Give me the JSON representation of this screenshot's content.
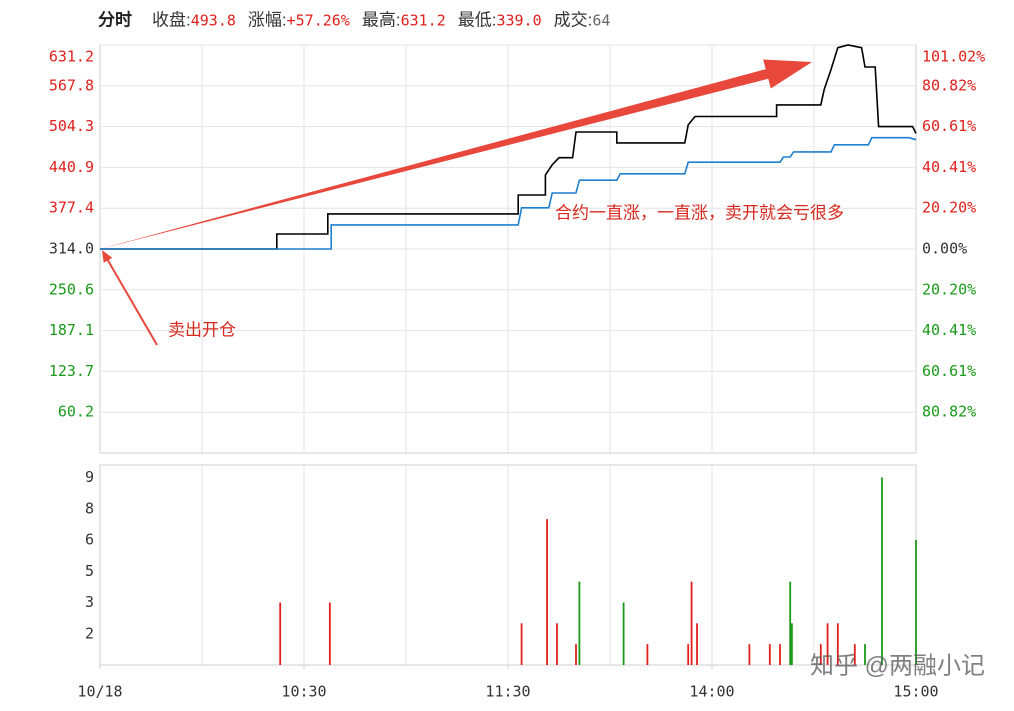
{
  "chart_data": [
    {
      "type": "line",
      "title": "分时",
      "stats": [
        {
          "label": "收盘:",
          "text": "493.8",
          "color": "#e0201c"
        },
        {
          "label": "涨幅:",
          "text": "+57.26%",
          "color": "#e0201c"
        },
        {
          "label": "最高:",
          "text": "631.2",
          "color": "#e0201c"
        },
        {
          "label": "最低:",
          "text": "339.0",
          "color": "#e0201c"
        },
        {
          "label": "成交:",
          "text": "64",
          "color": "#666666"
        }
      ],
      "xlim": [
        0,
        240
      ],
      "ylim": [
        -3.2,
        631.2
      ],
      "yticks": [
        631.2,
        567.8,
        504.3,
        440.9,
        377.4,
        {
          "value": 314,
          "label": "314.0"
        },
        250.6,
        187.1,
        123.7,
        60.2
      ],
      "y2lim": [
        -101.02,
        101.02
      ],
      "y2ticks": [
        {
          "value": 101.02,
          "label": "101.02%"
        },
        {
          "value": 80.82,
          "label": "80.82%"
        },
        {
          "value": 60.61,
          "label": "60.61%"
        },
        {
          "value": 40.41,
          "label": "40.41%"
        },
        {
          "value": 20.2,
          "label": "20.20%"
        },
        {
          "value": 0,
          "label": "0.00%"
        },
        {
          "value": -20.2,
          "label": "20.20%"
        },
        {
          "value": -40.41,
          "label": "40.41%"
        },
        {
          "value": -60.61,
          "label": "60.61%"
        },
        {
          "value": -80.82,
          "label": "80.82%"
        }
      ],
      "grid": true,
      "series": [
        {
          "color": "#000000",
          "x": [
            0,
            52,
            52,
            67,
            67,
            123,
            123,
            131,
            131,
            133,
            135,
            139,
            140,
            152,
            152,
            172,
            173,
            175,
            199,
            199,
            212,
            213,
            215,
            217,
            220,
            224,
            225,
            228,
            229,
            239,
            240
          ],
          "values": [
            314,
            314,
            337.4,
            337.4,
            368.5,
            368.5,
            398,
            398,
            429,
            445,
            456,
            456,
            496,
            496,
            479,
            479,
            507,
            520,
            520,
            538,
            538,
            562,
            593,
            627,
            631.2,
            627,
            597,
            597,
            504.3,
            504.3,
            493.8
          ]
        },
        {
          "color": "#1f7fd0",
          "x": [
            0,
            68,
            68,
            123,
            124,
            132,
            133,
            140,
            141,
            152,
            153,
            172,
            173,
            200,
            201,
            203,
            204,
            215,
            216,
            226,
            227,
            238,
            240
          ],
          "values": [
            314,
            314,
            351.4,
            351.4,
            378,
            378,
            401,
            401,
            421,
            421,
            431,
            431,
            449,
            449,
            457,
            457,
            465,
            465,
            476,
            476,
            487,
            487,
            484
          ]
        }
      ],
      "annotations": [
        "合约一直涨，一直涨，卖开就会亏很多",
        "卖出开仓"
      ]
    },
    {
      "type": "bar",
      "xlim": [
        0,
        240
      ],
      "xticks": [
        {
          "value": 0,
          "label": "10/18"
        },
        {
          "value": 60,
          "label": "10:30"
        },
        {
          "value": 120,
          "label": "11:30"
        },
        {
          "value": 180,
          "label": "14:00"
        },
        {
          "value": 240,
          "label": "15:00"
        }
      ],
      "ylim": [
        0,
        9.6
      ],
      "yticks": [
        9,
        {
          "value": 7.5,
          "label": "8"
        },
        6,
        {
          "value": 4.5,
          "label": "5"
        },
        3,
        {
          "value": 1.5,
          "label": "2"
        }
      ],
      "x": [
        53,
        67.6,
        124,
        131.5,
        134.4,
        140,
        141,
        154,
        161,
        173,
        174,
        175.6,
        191,
        197,
        200,
        203,
        203.5,
        212,
        214,
        217,
        222,
        225,
        230,
        240
      ],
      "values": [
        3,
        3,
        2,
        7,
        2,
        1,
        4,
        3,
        1,
        1,
        4,
        2,
        1,
        1,
        1,
        4,
        2,
        1,
        2,
        2,
        1,
        1,
        9,
        6
      ],
      "colors": [
        "#e0201c",
        "#e0201c",
        "#e0201c",
        "#e0201c",
        "#e0201c",
        "#e0201c",
        "#1a9a1a",
        "#1a9a1a",
        "#e0201c",
        "#e0201c",
        "#e0201c",
        "#e0201c",
        "#e0201c",
        "#e0201c",
        "#e0201c",
        "#1a9a1a",
        "#1a9a1a",
        "#e0201c",
        "#e0201c",
        "#e0201c",
        "#e0201c",
        "#1a9a1a",
        "#1a9a1a",
        "#1a9a1a"
      ]
    }
  ],
  "watermark": "知乎 @两融小记"
}
